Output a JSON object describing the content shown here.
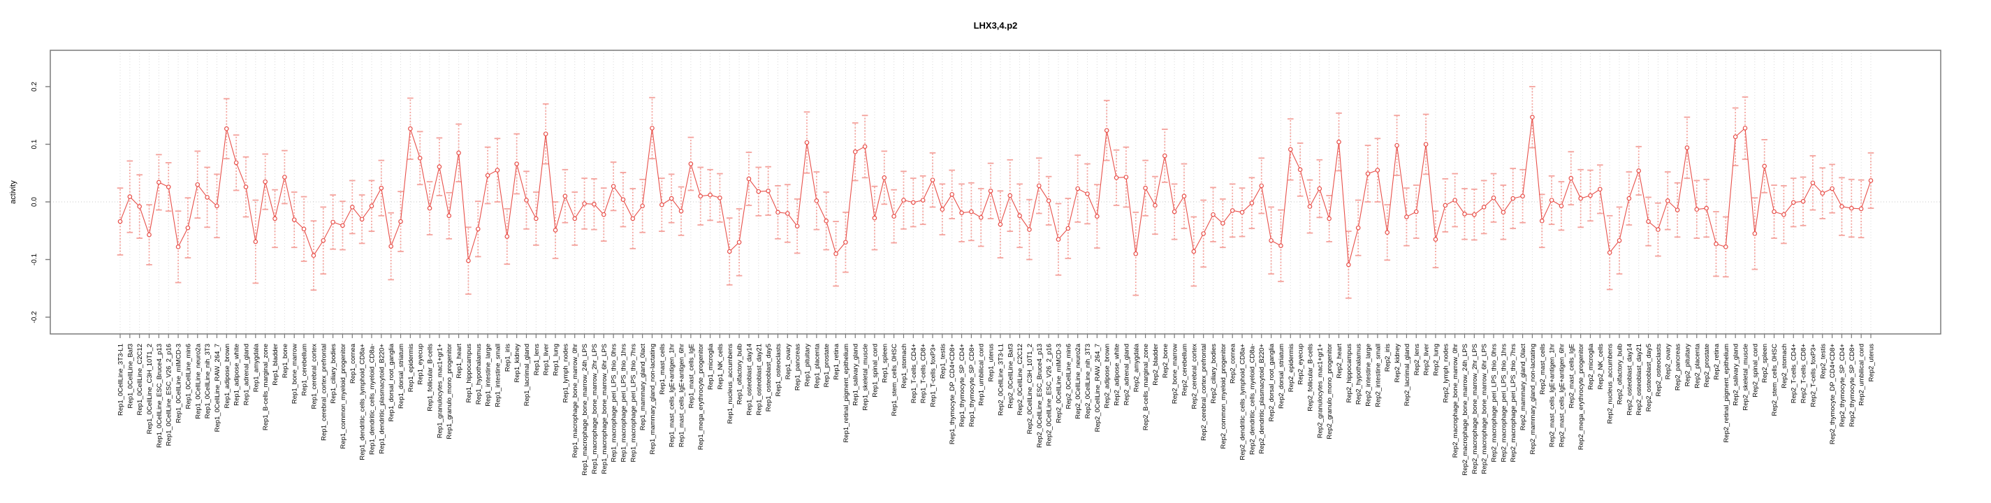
{
  "page_title": "LHX3,4.p2",
  "chart_data": {
    "type": "line",
    "subtype": "points-with-error-bars",
    "title": "LHX3,4.p2",
    "xlabel": "",
    "ylabel": "activity",
    "ylim": [
      -0.24,
      0.26
    ],
    "yticks": [
      0.2,
      0.1,
      0.0,
      -0.1,
      -0.2
    ],
    "ytick_labels": [
      "0.2",
      "0.1",
      "0.0",
      "-0.1",
      "-0.2"
    ],
    "grid": "vertical dotted gridline per category, dotted horizontal line at 0",
    "legend": null,
    "categories": [
      "Rep1_0CellLine_3T3-L1",
      "Rep1_0CellLine_Baf3",
      "Rep1_0CellLine_C2C12",
      "Rep1_0CellLine_C3H_10T1_2",
      "Rep1_0CellLine_ESC_Bruce4_p13",
      "Rep1_0CellLine_ESC_V26_2_p16",
      "Rep1_0CellLine_mIMCD-3",
      "Rep1_0CellLine_min6",
      "Rep1_0CellLine_neuro2a",
      "Rep1_0CellLine_nih_3T3",
      "Rep1_0CellLine_RAW_264_7",
      "Rep1_adipose_brown",
      "Rep1_adipose_white",
      "Rep1_adrenal_gland",
      "Rep1_amygdala",
      "Rep1_B-cells_marginal_zone",
      "Rep1_bladder",
      "Rep1_bone",
      "Rep1_bone_marrow",
      "Rep1_cerebellum",
      "Rep1_cerebral_cortex",
      "Rep1_cerebral_cortex_prefrontal",
      "Rep1_ciliary_bodies",
      "Rep1_common_myeloid_progenitor",
      "Rep1_cornea",
      "Rep1_dendritic_cells_lymphoid_CD8a+",
      "Rep1_dendritic_cells_myeloid_CD8a-",
      "Rep1_dendritic_plasmacytoid_B220+",
      "Rep1_dorsal_root_ganglia",
      "Rep1_dorsal_striatum",
      "Rep1_epidermis",
      "Rep1_eyecup",
      "Rep1_follicular_B-cells",
      "Rep1_granulocytes_mac1+gr1+",
      "Rep1_granulo_mono_progenitor",
      "Rep1_heart",
      "Rep1_hippocampus",
      "Rep1_hypothalamus",
      "Rep1_intestine_large",
      "Rep1_intestine_small",
      "Rep1_iris",
      "Rep1_kidney",
      "Rep1_lacrimal_gland",
      "Rep1_lens",
      "Rep1_liver",
      "Rep1_lung",
      "Rep1_lymph_nodes",
      "Rep1_macrophage_bone_marrow_0hr",
      "Rep1_macrophage_bone_marrow_24h_LPS",
      "Rep1_macrophage_bone_marrow_2hr_LPS",
      "Rep1_macrophage_bone_marrow_6hr_LPS",
      "Rep1_macrophage_peri_LPS_thio_0hrs",
      "Rep1_macrophage_peri_LPS_thio_1hrs",
      "Rep1_macrophage_peri_LPS_thio_7hrs",
      "Rep1_mammary_gland_0lact",
      "Rep1_mammary_gland_non-lactating",
      "Rep1_mast_cells",
      "Rep1_mast_cells_IgE+antigen_1hr",
      "Rep1_mast_cells_IgE+antigen_6hr",
      "Rep1_mast_cells_IgE",
      "Rep1_mega_erythrocyte_progenitor",
      "Rep1_microglia",
      "Rep1_NK_cells",
      "Rep1_nucleus_accumbens",
      "Rep1_olfactory_bulb",
      "Rep1_osteoblast_day14",
      "Rep1_osteoblast_day21",
      "Rep1_osteoblast_day5",
      "Rep1_osteoclasts",
      "Rep1_ovary",
      "Rep1_pancreas",
      "Rep1_pituitary",
      "Rep1_placenta",
      "Rep1_prostate",
      "Rep1_retina",
      "Rep1_retinal_pigment_epithelium",
      "Rep1_salivary_gland",
      "Rep1_skeletal_muscle",
      "Rep1_spinal_cord",
      "Rep1_spleen",
      "Rep1_stem_cells_0HSC",
      "Rep1_stomach",
      "Rep1_T-cells_CD4+",
      "Rep1_T-cells_CD8+",
      "Rep1_T-cells_foxP3+",
      "Rep1_testis",
      "Rep1_thymocyte_DP_CD4+CD8+",
      "Rep1_thymocyte_SP_CD4+",
      "Rep1_thymocyte_SP_CD8+",
      "Rep1_umbilical_cord",
      "Rep1_uterus",
      "Rep2_0CellLine_3T3-L1",
      "Rep2_0CellLine_Baf3",
      "Rep2_0CellLine_C2C12",
      "Rep2_0CellLine_C3H_10T1_2",
      "Rep2_0CellLine_ESC_Bruce4_p13",
      "Rep2_0CellLine_ESC_V26_2_p16",
      "Rep2_0CellLine_mIMCD-3",
      "Rep2_0CellLine_min6",
      "Rep2_0CellLine_neuro2a",
      "Rep2_0CellLine_nih_3T3",
      "Rep2_0CellLine_RAW_264_7",
      "Rep2_adipose_brown",
      "Rep2_adipose_white",
      "Rep2_adrenal_gland",
      "Rep2_amygdala",
      "Rep2_B-cells_marginal_zone",
      "Rep2_bladder",
      "Rep2_bone",
      "Rep2_bone_marrow",
      "Rep2_cerebellum",
      "Rep2_cerebral_cortex",
      "Rep2_cerebral_cortex_prefrontal",
      "Rep2_ciliary_bodies",
      "Rep2_common_myeloid_progenitor",
      "Rep2_cornea",
      "Rep2_dendritic_cells_lymphoid_CD8a+",
      "Rep2_dendritic_cells_myeloid_CD8a-",
      "Rep2_dendritic_plasmacytoid_B220+",
      "Rep2_dorsal_root_ganglia",
      "Rep2_dorsal_striatum",
      "Rep2_epidermis",
      "Rep2_eyecup",
      "Rep2_follicular_B-cells",
      "Rep2_granulocytes_mac1+gr1+",
      "Rep2_granulo_mono_progenitor",
      "Rep2_heart",
      "Rep2_hippocampus",
      "Rep2_hypothalamus",
      "Rep2_intestine_large",
      "Rep2_intestine_small",
      "Rep2_iris",
      "Rep2_kidney",
      "Rep2_lacrimal_gland",
      "Rep2_lens",
      "Rep2_liver",
      "Rep2_lung",
      "Rep2_lymph_nodes",
      "Rep2_macrophage_bone_marrow_0hr",
      "Rep2_macrophage_bone_marrow_24h_LPS",
      "Rep2_macrophage_bone_marrow_2hr_LPS",
      "Rep2_macrophage_bone_marrow_6hr_LPS",
      "Rep2_macrophage_peri_LPS_thio_0hrs",
      "Rep2_macrophage_peri_LPS_thio_1hrs",
      "Rep2_macrophage_peri_LPS_thio_7hrs",
      "Rep2_mammary_gland_0lact",
      "Rep2_mammary_gland_non-lactating",
      "Rep2_mast_cells",
      "Rep2_mast_cells_IgE+antigen_1hr",
      "Rep2_mast_cells_IgE+antigen_6hr",
      "Rep2_mast_cells_IgE",
      "Rep2_mega_erythrocyte_progenitor",
      "Rep2_microglia",
      "Rep2_NK_cells",
      "Rep2_nucleus_accumbens",
      "Rep2_olfactory_bulb",
      "Rep2_osteoblast_day14",
      "Rep2_osteoblast_day21",
      "Rep2_osteoblast_day5",
      "Rep2_osteoclasts",
      "Rep2_ovary",
      "Rep2_pancreas",
      "Rep2_pituitary",
      "Rep2_placenta",
      "Rep2_prostate",
      "Rep2_retina",
      "Rep2_retinal_pigment_epithelium",
      "Rep2_salivary_gland",
      "Rep2_skeletal_muscle",
      "Rep2_spinal_cord",
      "Rep2_spleen",
      "Rep2_stem_cells_0HSC",
      "Rep2_stomach",
      "Rep2_T-cells_CD4+",
      "Rep2_T-cells_CD8+",
      "Rep2_T-cells_foxP3+",
      "Rep2_testis",
      "Rep2_thymocyte_DP_CD4+CD8+",
      "Rep2_thymocyte_SP_CD4+",
      "Rep2_thymocyte_SP_CD8+",
      "Rep2_umbilical_cord",
      "Rep2_uterus"
    ],
    "values": [
      -0.034,
      0.009,
      -0.008,
      -0.057,
      0.034,
      0.026,
      -0.078,
      -0.045,
      0.03,
      0.008,
      -0.007,
      0.127,
      0.068,
      0.026,
      -0.069,
      0.035,
      -0.029,
      0.043,
      -0.031,
      -0.047,
      -0.093,
      -0.067,
      -0.035,
      -0.041,
      -0.009,
      -0.03,
      -0.007,
      0.024,
      -0.077,
      -0.034,
      0.127,
      0.076,
      -0.011,
      0.061,
      -0.024,
      0.085,
      -0.102,
      -0.047,
      0.046,
      0.055,
      -0.06,
      0.066,
      0.003,
      -0.029,
      0.118,
      -0.049,
      0.01,
      -0.029,
      -0.003,
      -0.004,
      -0.022,
      0.027,
      0.004,
      -0.029,
      -0.007,
      0.128,
      -0.005,
      0.006,
      -0.016,
      0.066,
      0.01,
      0.012,
      0.007,
      -0.086,
      -0.07,
      0.04,
      0.018,
      0.019,
      -0.018,
      -0.02,
      -0.042,
      0.103,
      0.002,
      -0.033,
      -0.09,
      -0.07,
      0.087,
      0.096,
      -0.028,
      0.042,
      -0.025,
      0.003,
      -0.001,
      0.003,
      0.038,
      -0.013,
      0.013,
      -0.019,
      -0.017,
      -0.027,
      0.019,
      -0.039,
      0.011,
      -0.024,
      -0.048,
      0.028,
      0.002,
      -0.065,
      -0.046,
      0.023,
      0.014,
      -0.025,
      0.124,
      0.042,
      0.043,
      -0.09,
      0.024,
      -0.006,
      0.08,
      -0.017,
      0.01,
      -0.086,
      -0.055,
      -0.022,
      -0.037,
      -0.015,
      -0.018,
      -0.002,
      0.028,
      -0.067,
      -0.076,
      0.091,
      0.056,
      -0.008,
      0.023,
      -0.029,
      0.104,
      -0.109,
      -0.045,
      0.049,
      0.055,
      -0.053,
      0.098,
      -0.026,
      -0.017,
      0.1,
      -0.065,
      -0.006,
      0.003,
      -0.021,
      -0.022,
      -0.009,
      0.007,
      -0.018,
      0.006,
      0.01,
      0.147,
      -0.033,
      0.003,
      -0.007,
      0.041,
      0.006,
      0.011,
      0.022,
      -0.088,
      -0.067,
      0.006,
      0.054,
      -0.034,
      -0.048,
      0.002,
      -0.014,
      0.094,
      -0.013,
      -0.011,
      -0.073,
      -0.078,
      0.113,
      0.128,
      -0.055,
      0.062,
      -0.017,
      -0.022,
      -0.001,
      0.001,
      0.033,
      0.015,
      0.023,
      -0.008,
      -0.011,
      -0.012,
      0.037
    ],
    "errors": [
      0.058,
      0.062,
      0.055,
      0.052,
      0.048,
      0.042,
      0.062,
      0.052,
      0.058,
      0.052,
      0.055,
      0.052,
      0.048,
      0.052,
      0.072,
      0.048,
      0.05,
      0.046,
      0.048,
      0.056,
      0.06,
      0.058,
      0.047,
      0.042,
      0.046,
      0.042,
      0.044,
      0.048,
      0.058,
      0.052,
      0.053,
      0.046,
      0.046,
      0.05,
      0.04,
      0.05,
      0.058,
      0.048,
      0.049,
      0.055,
      0.048,
      0.052,
      0.05,
      0.046,
      0.052,
      0.049,
      0.046,
      0.046,
      0.044,
      0.044,
      0.046,
      0.042,
      0.047,
      0.052,
      0.046,
      0.053,
      0.046,
      0.042,
      0.042,
      0.046,
      0.05,
      0.044,
      0.042,
      0.058,
      0.058,
      0.046,
      0.042,
      0.042,
      0.046,
      0.05,
      0.047,
      0.053,
      0.05,
      0.05,
      0.056,
      0.052,
      0.05,
      0.054,
      0.055,
      0.046,
      0.046,
      0.05,
      0.042,
      0.042,
      0.047,
      0.044,
      0.042,
      0.05,
      0.05,
      0.05,
      0.048,
      0.058,
      0.062,
      0.055,
      0.052,
      0.048,
      0.042,
      0.062,
      0.052,
      0.058,
      0.052,
      0.055,
      0.052,
      0.048,
      0.052,
      0.072,
      0.048,
      0.05,
      0.046,
      0.048,
      0.056,
      0.06,
      0.058,
      0.047,
      0.042,
      0.046,
      0.042,
      0.044,
      0.048,
      0.058,
      0.062,
      0.053,
      0.046,
      0.046,
      0.05,
      0.04,
      0.05,
      0.058,
      0.048,
      0.049,
      0.055,
      0.048,
      0.052,
      0.05,
      0.046,
      0.052,
      0.049,
      0.046,
      0.046,
      0.044,
      0.044,
      0.046,
      0.042,
      0.047,
      0.052,
      0.046,
      0.053,
      0.046,
      0.042,
      0.042,
      0.046,
      0.05,
      0.044,
      0.042,
      0.064,
      0.058,
      0.046,
      0.042,
      0.042,
      0.046,
      0.05,
      0.047,
      0.053,
      0.05,
      0.05,
      0.056,
      0.052,
      0.05,
      0.054,
      0.062,
      0.046,
      0.046,
      0.05,
      0.042,
      0.042,
      0.047,
      0.044,
      0.042,
      0.05,
      0.05,
      0.05,
      0.048
    ],
    "colors": {
      "series": "#e8504a",
      "whisker": "#f4a29c",
      "grid": "#d9d9d9",
      "zero_line": "#c9c9c9",
      "frame": "#7a7a7a",
      "text": "#000000"
    }
  }
}
